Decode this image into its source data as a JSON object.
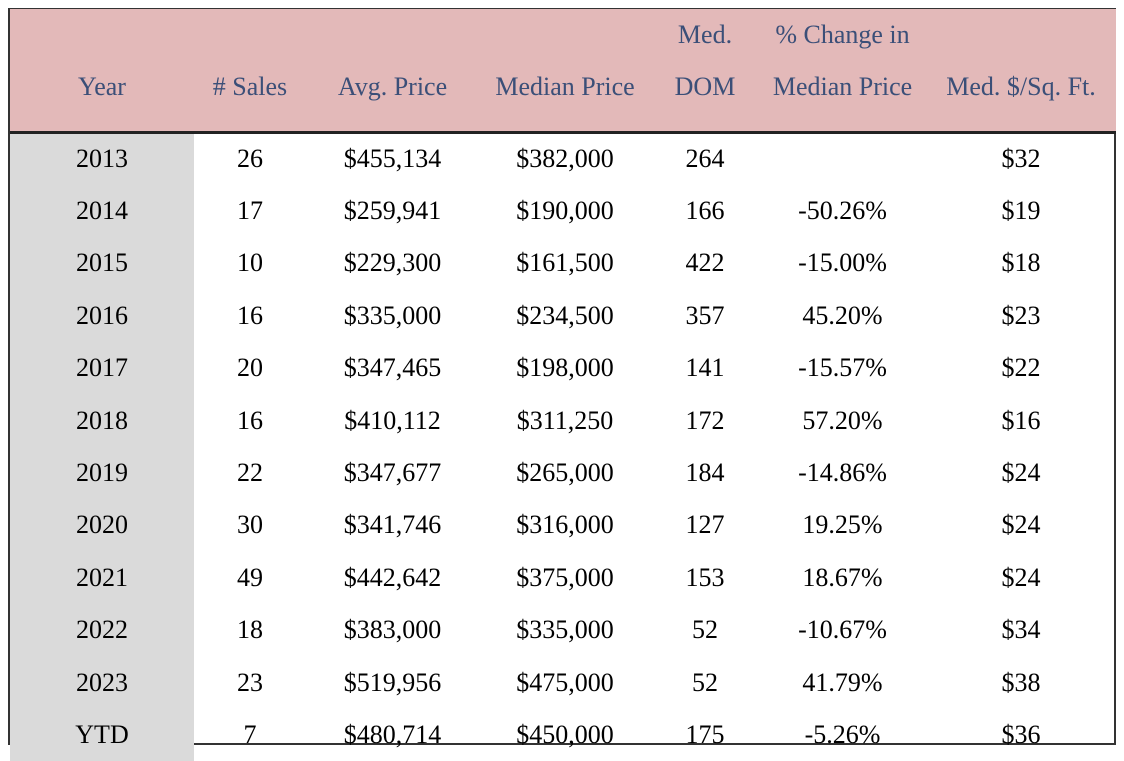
{
  "table": {
    "header": [
      [
        "Year"
      ],
      [
        "# Sales"
      ],
      [
        "Avg. Price"
      ],
      [
        "Median Price"
      ],
      [
        "Med.",
        "DOM"
      ],
      [
        "% Change in",
        "Median Price"
      ],
      [
        "Med. $/Sq. Ft."
      ]
    ],
    "rows": [
      [
        "2013",
        "26",
        "$455,134",
        "$382,000",
        "264",
        null,
        "$32"
      ],
      [
        "2014",
        "17",
        "$259,941",
        "$190,000",
        "166",
        "-50.26%",
        "$19"
      ],
      [
        "2015",
        "10",
        "$229,300",
        "$161,500",
        "422",
        "-15.00%",
        "$18"
      ],
      [
        "2016",
        "16",
        "$335,000",
        "$234,500",
        "357",
        "45.20%",
        "$23"
      ],
      [
        "2017",
        "20",
        "$347,465",
        "$198,000",
        "141",
        "-15.57%",
        "$22"
      ],
      [
        "2018",
        "16",
        "$410,112",
        "$311,250",
        "172",
        "57.20%",
        "$16"
      ],
      [
        "2019",
        "22",
        "$347,677",
        "$265,000",
        "184",
        "-14.86%",
        "$24"
      ],
      [
        "2020",
        "30",
        "$341,746",
        "$316,000",
        "127",
        "19.25%",
        "$24"
      ],
      [
        "2021",
        "49",
        "$442,642",
        "$375,000",
        "153",
        "18.67%",
        "$24"
      ],
      [
        "2022",
        "18",
        "$383,000",
        "$335,000",
        "52",
        "-10.67%",
        "$34"
      ],
      [
        "2023",
        "23",
        "$519,956",
        "$475,000",
        "52",
        "41.79%",
        "$38"
      ],
      [
        "YTD",
        "7",
        "$480,714",
        "$450,000",
        "175",
        "-5.26%",
        "$36"
      ]
    ]
  }
}
